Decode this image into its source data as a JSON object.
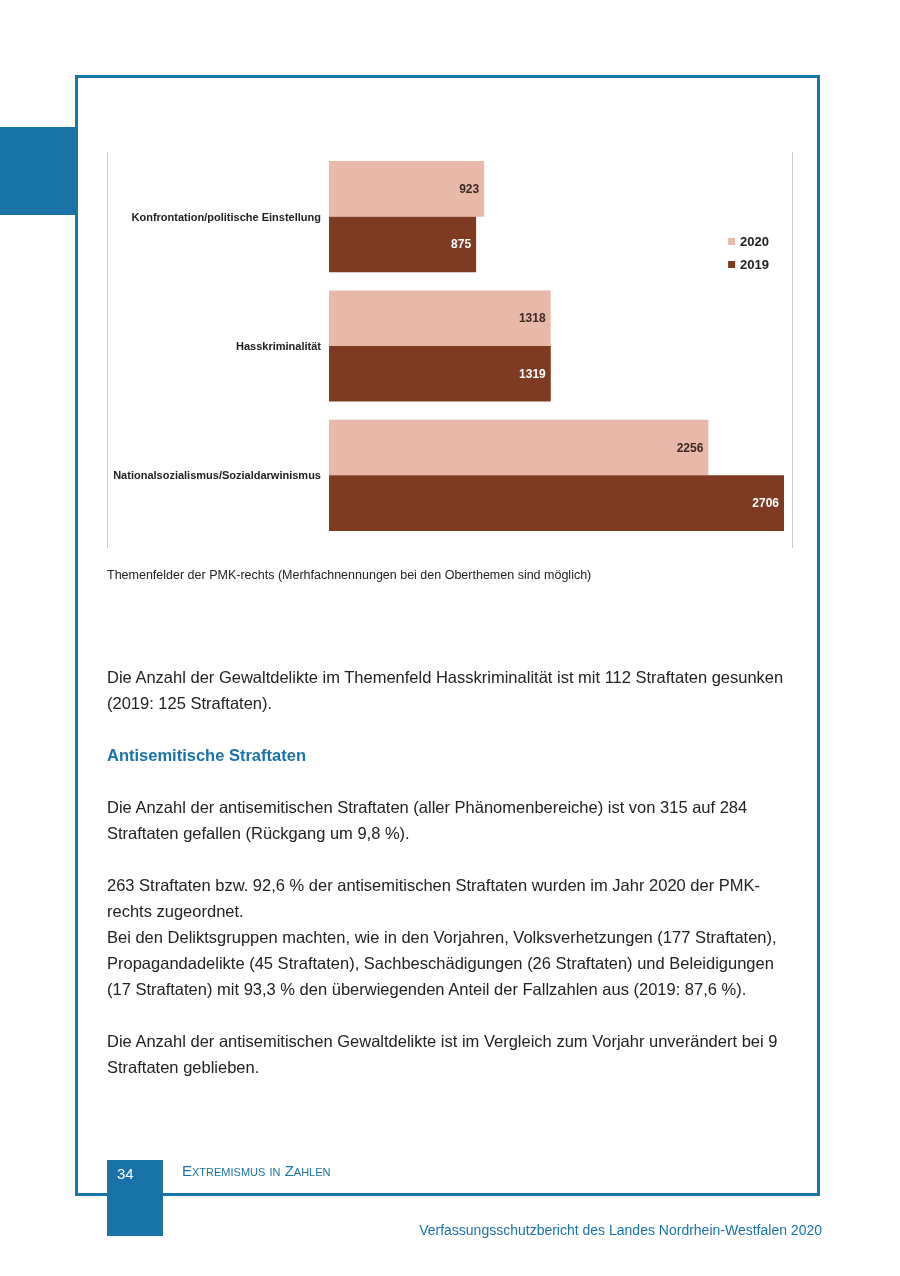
{
  "chart_data": {
    "type": "bar",
    "orientation": "horizontal",
    "categories": [
      "Konfrontation/politische Einstellung",
      "Hasskriminalität",
      "Nationalsozialismus/Sozialdarwinismus"
    ],
    "series": [
      {
        "name": "2020",
        "color": "#e8b8a8",
        "values": [
          923,
          1318,
          2256
        ]
      },
      {
        "name": "2019",
        "color": "#7f3a22",
        "values": [
          875,
          1319,
          2706
        ]
      }
    ],
    "data_labels": true,
    "legend": "right",
    "tick_labels": "y",
    "annotations": [
      "Themenfelder der PMK-rechts (Merhfachnennungen bei den Oberthemen sind möglich)",
      "Die Anzahl der Gewaltdelikte im Themenfeld Hasskriminalität ist mit 112 Straftaten gesunken (2019: 125 Straftaten).",
      "Antisemitische Straftaten",
      "Die Anzahl der antisemitischen Straftaten (aller Phänomenbereiche) ist von 315 auf 284 Straftaten gefallen (Rückgang um 9,8 %).",
      "263 Straftaten bzw. 92,6 % der antisemitischen Straftaten wurden im Jahr 2020 der PMK-rechts zugeordnet.",
      "Bei den Deliktsgruppen machten, wie in den Vorjahren, Volksverhetzungen (177 Straftaten), Propagandadelikte (45 Straftaten), Sachbeschädigungen (26 Straftaten) und Beleidigungen (17 Straftaten) mit 93,3 % den überwiegenden Anteil der Fallzahlen aus (2019: 87,6 %).",
      "Die Anzahl der antisemitischen Gewaltdelikte ist im Vergleich zum Vorjahr unverändert bei 9 Straftaten geblieben.",
      "34",
      "Extremismus in Zahlen",
      "Verfassungsschutzbericht des Landes Nordrhein-Westfalen 2020"
    ]
  }
}
